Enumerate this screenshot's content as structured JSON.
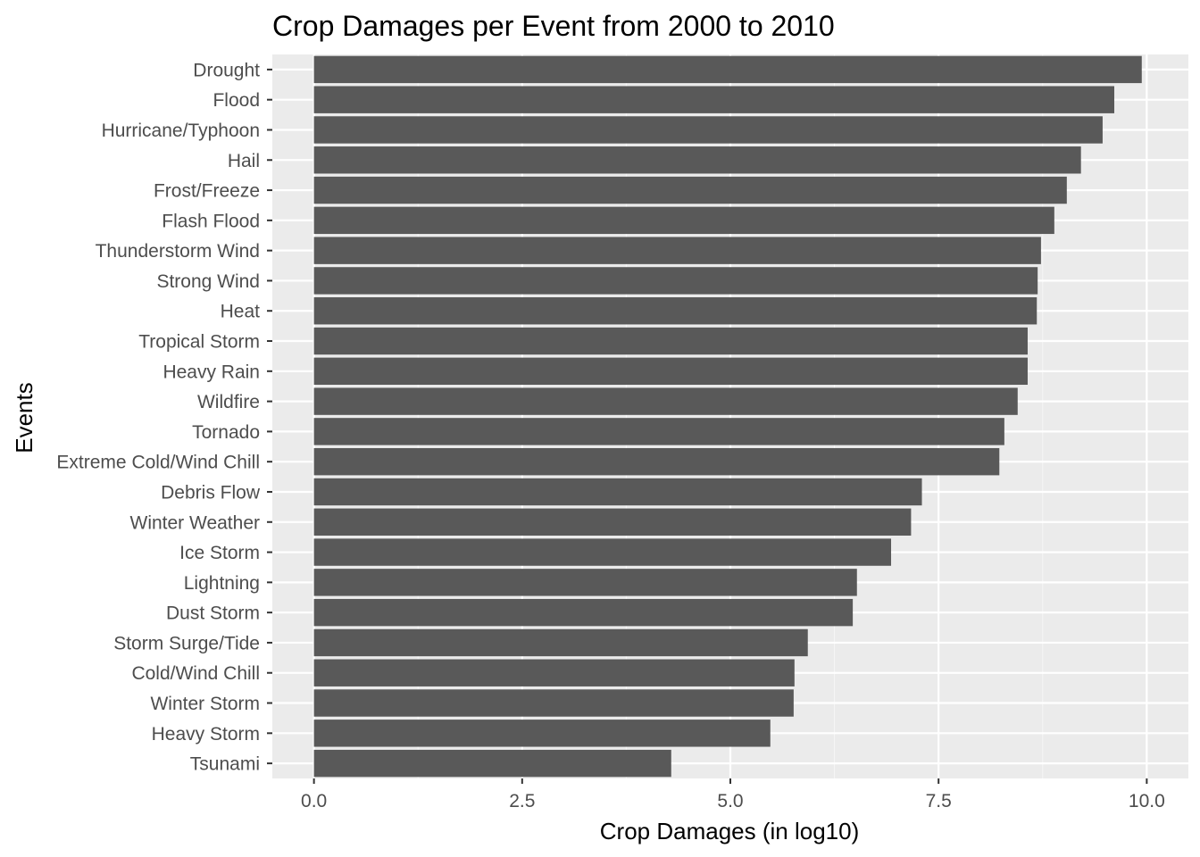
{
  "chart_data": {
    "type": "bar",
    "orientation": "horizontal",
    "title": "Crop Damages per Event from 2000 to 2010",
    "xlabel": "Crop Damages (in log10)",
    "ylabel": "Events",
    "xlim": [
      -0.5,
      10.5
    ],
    "xticks": [
      0,
      2.5,
      5,
      7.5,
      10
    ],
    "xtick_labels": [
      "0.0",
      "2.5",
      "5.0",
      "7.5",
      "10.0"
    ],
    "grid": true,
    "legend": "none",
    "categories": [
      "Drought",
      "Flood",
      "Hurricane/Typhoon",
      "Hail",
      "Frost/Freeze",
      "Flash Flood",
      "Thunderstorm Wind",
      "Strong Wind",
      "Heat",
      "Tropical Storm",
      "Heavy Rain",
      "Wildfire",
      "Tornado",
      "Extreme Cold/Wind Chill",
      "Debris Flow",
      "Winter Weather",
      "Ice Storm",
      "Lightning",
      "Dust Storm",
      "Storm Surge/Tide",
      "Cold/Wind Chill",
      "Winter Storm",
      "Heavy Storm",
      "Tsunami"
    ],
    "values": [
      9.94,
      9.61,
      9.47,
      9.21,
      9.04,
      8.89,
      8.73,
      8.69,
      8.68,
      8.57,
      8.57,
      8.45,
      8.29,
      8.23,
      7.3,
      7.17,
      6.93,
      6.52,
      6.47,
      5.93,
      5.77,
      5.76,
      5.48,
      4.29
    ],
    "colors": {
      "panel_bg": "#ebebeb",
      "grid_major": "#ffffff",
      "grid_minor": "#f5f5f5",
      "bar": "#595959",
      "tick_label": "#4d4d4d",
      "tick_mark": "#333333"
    }
  }
}
